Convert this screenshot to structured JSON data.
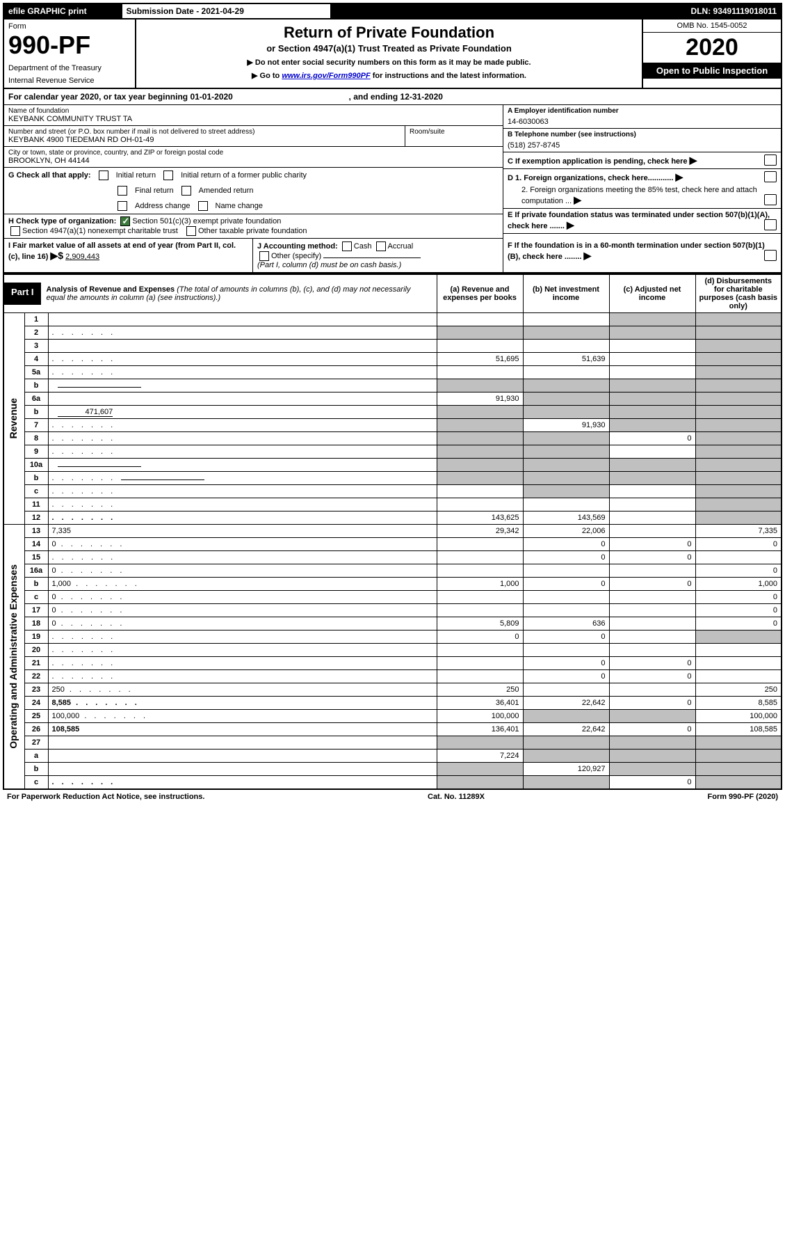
{
  "topbar": {
    "efile": "efile GRAPHIC print",
    "submission_label": "Submission Date - 2021-04-29",
    "dln": "DLN: 93491119018011"
  },
  "header": {
    "form_word": "Form",
    "form_no": "990-PF",
    "dept1": "Department of the Treasury",
    "dept2": "Internal Revenue Service",
    "title": "Return of Private Foundation",
    "subtitle": "or Section 4947(a)(1) Trust Treated as Private Foundation",
    "instr1": "▶ Do not enter social security numbers on this form as it may be made public.",
    "instr2_pre": "▶ Go to ",
    "instr2_link": "www.irs.gov/Form990PF",
    "instr2_post": " for instructions and the latest information.",
    "omb": "OMB No. 1545-0052",
    "year": "2020",
    "open": "Open to Public Inspection"
  },
  "calyear": {
    "pre": "For calendar year 2020, or tax year beginning ",
    "begin": "01-01-2020",
    "mid": " , and ending ",
    "end": "12-31-2020"
  },
  "info": {
    "name_label": "Name of foundation",
    "name": "KEYBANK COMMUNITY TRUST TA",
    "addr_label": "Number and street (or P.O. box number if mail is not delivered to street address)",
    "addr": "KEYBANK 4900 TIEDEMAN RD OH-01-49",
    "room_label": "Room/suite",
    "city_label": "City or town, state or province, country, and ZIP or foreign postal code",
    "city": "BROOKLYN, OH  44144",
    "a_label": "A Employer identification number",
    "a_val": "14-6030063",
    "b_label": "B Telephone number (see instructions)",
    "b_val": "(518) 257-8745",
    "c_label": "C If exemption application is pending, check here",
    "d1": "D 1. Foreign organizations, check here............",
    "d2": "2. Foreign organizations meeting the 85% test, check here and attach computation ...",
    "e_label": "E  If private foundation status was terminated under section 507(b)(1)(A), check here .......",
    "f_label": "F  If the foundation is in a 60-month termination under section 507(b)(1)(B), check here ........"
  },
  "g": {
    "label": "G Check all that apply:",
    "opts": [
      "Initial return",
      "Initial return of a former public charity",
      "Final return",
      "Amended return",
      "Address change",
      "Name change"
    ]
  },
  "h": {
    "label": "H Check type of organization:",
    "opt1": "Section 501(c)(3) exempt private foundation",
    "opt2": "Section 4947(a)(1) nonexempt charitable trust",
    "opt3": "Other taxable private foundation"
  },
  "i": {
    "label": "I Fair market value of all assets at end of year (from Part II, col. (c), line 16)",
    "arrow": "▶$",
    "val": "2,909,443"
  },
  "j": {
    "label": "J Accounting method:",
    "cash": "Cash",
    "accrual": "Accrual",
    "other": "Other (specify)",
    "note": "(Part I, column (d) must be on cash basis.)"
  },
  "part1": {
    "label": "Part I",
    "title": "Analysis of Revenue and Expenses",
    "title_note": " (The total of amounts in columns (b), (c), and (d) may not necessarily equal the amounts in column (a) (see instructions).)",
    "col_a": "(a)   Revenue and expenses per books",
    "col_b": "(b)  Net investment income",
    "col_c": "(c)  Adjusted net income",
    "col_d": "(d)  Disbursements for charitable purposes (cash basis only)"
  },
  "side_labels": {
    "revenue": "Revenue",
    "expenses": "Operating and Administrative Expenses"
  },
  "rows": [
    {
      "n": "1",
      "d": "",
      "a": "",
      "b": "",
      "c": "",
      "grey_cd": true
    },
    {
      "n": "2",
      "d": "",
      "dots": true,
      "a": "",
      "b": "",
      "c": "",
      "grey_all": true
    },
    {
      "n": "3",
      "d": "",
      "a": "",
      "b": "",
      "c": "",
      "grey_d": true
    },
    {
      "n": "4",
      "d": "",
      "dots": true,
      "a": "51,695",
      "b": "51,639",
      "c": "",
      "grey_d": true
    },
    {
      "n": "5a",
      "d": "",
      "dots": true,
      "a": "",
      "b": "",
      "c": "",
      "grey_d": true
    },
    {
      "n": "b",
      "d": "",
      "line": true,
      "a": "",
      "b": "",
      "c": "",
      "grey_abcd": true
    },
    {
      "n": "6a",
      "d": "",
      "a": "91,930",
      "b": "",
      "c": "",
      "grey_bcd": true
    },
    {
      "n": "b",
      "d": "",
      "inline_val": "471,607",
      "a": "",
      "b": "",
      "c": "",
      "grey_abcd": true
    },
    {
      "n": "7",
      "d": "",
      "dots": true,
      "a": "",
      "b": "91,930",
      "c": "",
      "grey_a": true,
      "grey_cd": true
    },
    {
      "n": "8",
      "d": "",
      "dots": true,
      "a": "",
      "b": "",
      "c": "0",
      "grey_ab": true,
      "grey_d": true
    },
    {
      "n": "9",
      "d": "",
      "dots": true,
      "a": "",
      "b": "",
      "c": "",
      "grey_ab": true,
      "grey_d": true
    },
    {
      "n": "10a",
      "d": "",
      "line": true,
      "a": "",
      "b": "",
      "c": "",
      "grey_abcd": true
    },
    {
      "n": "b",
      "d": "",
      "dots": true,
      "line": true,
      "a": "",
      "b": "",
      "c": "",
      "grey_abcd": true
    },
    {
      "n": "c",
      "d": "",
      "dots": true,
      "a": "",
      "b": "",
      "c": "",
      "grey_b": true,
      "grey_d": true
    },
    {
      "n": "11",
      "d": "",
      "dots": true,
      "a": "",
      "b": "",
      "c": "",
      "grey_d": true
    },
    {
      "n": "12",
      "d": "",
      "dots": true,
      "bold": true,
      "a": "143,625",
      "b": "143,569",
      "c": "",
      "grey_d": true
    }
  ],
  "exp_rows": [
    {
      "n": "13",
      "d": "7,335",
      "a": "29,342",
      "b": "22,006",
      "c": ""
    },
    {
      "n": "14",
      "d": "0",
      "dots": true,
      "a": "",
      "b": "0",
      "c": "0"
    },
    {
      "n": "15",
      "d": "",
      "dots": true,
      "a": "",
      "b": "0",
      "c": "0"
    },
    {
      "n": "16a",
      "d": "0",
      "dots": true,
      "a": "",
      "b": "",
      "c": ""
    },
    {
      "n": "b",
      "d": "1,000",
      "dots": true,
      "a": "1,000",
      "b": "0",
      "c": "0"
    },
    {
      "n": "c",
      "d": "0",
      "dots": true,
      "a": "",
      "b": "",
      "c": ""
    },
    {
      "n": "17",
      "d": "0",
      "dots": true,
      "a": "",
      "b": "",
      "c": ""
    },
    {
      "n": "18",
      "d": "0",
      "dots": true,
      "a": "5,809",
      "b": "636",
      "c": ""
    },
    {
      "n": "19",
      "d": "",
      "dots": true,
      "a": "0",
      "b": "0",
      "c": "",
      "grey_d": true
    },
    {
      "n": "20",
      "d": "",
      "dots": true,
      "a": "",
      "b": "",
      "c": ""
    },
    {
      "n": "21",
      "d": "",
      "dots": true,
      "a": "",
      "b": "0",
      "c": "0"
    },
    {
      "n": "22",
      "d": "",
      "dots": true,
      "a": "",
      "b": "0",
      "c": "0"
    },
    {
      "n": "23",
      "d": "250",
      "dots": true,
      "a": "250",
      "b": "",
      "c": ""
    },
    {
      "n": "24",
      "d": "8,585",
      "dots": true,
      "bold": true,
      "a": "36,401",
      "b": "22,642",
      "c": "0"
    },
    {
      "n": "25",
      "d": "100,000",
      "dots": true,
      "a": "100,000",
      "b": "",
      "c": "",
      "grey_bc": true
    },
    {
      "n": "26",
      "d": "108,585",
      "bold": true,
      "a": "136,401",
      "b": "22,642",
      "c": "0"
    },
    {
      "n": "27",
      "d": "",
      "a": "",
      "b": "",
      "c": "",
      "grey_abcd": true
    },
    {
      "n": "a",
      "d": "",
      "bold": true,
      "a": "7,224",
      "b": "",
      "c": "",
      "grey_bcd": true
    },
    {
      "n": "b",
      "d": "",
      "bold": true,
      "a": "",
      "b": "120,927",
      "c": "",
      "grey_a": true,
      "grey_cd": true
    },
    {
      "n": "c",
      "d": "",
      "dots": true,
      "bold": true,
      "a": "",
      "b": "",
      "c": "0",
      "grey_ab": true,
      "grey_d": true
    }
  ],
  "footer": {
    "left": "For Paperwork Reduction Act Notice, see instructions.",
    "mid": "Cat. No. 11289X",
    "right": "Form 990-PF (2020)"
  }
}
